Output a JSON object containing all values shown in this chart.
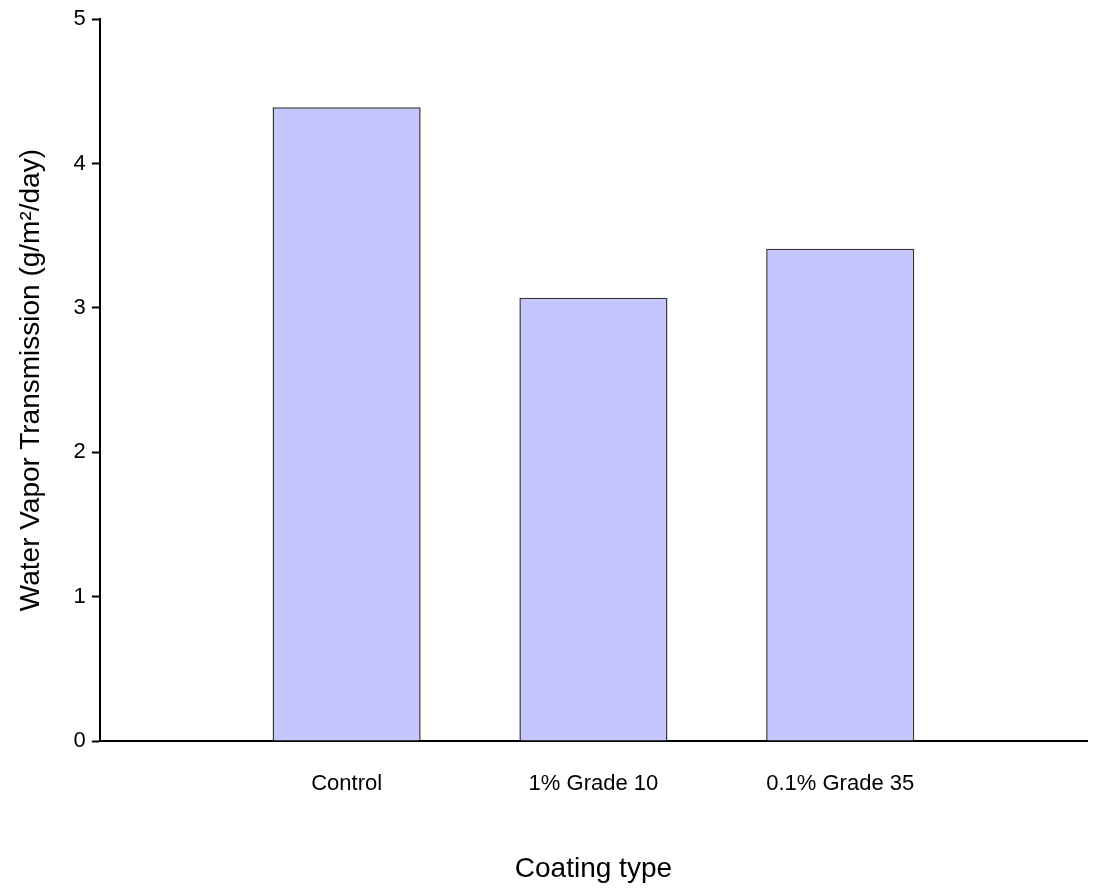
{
  "chart_data": {
    "type": "bar",
    "xlabel": "Coating type",
    "ylabel": "Water Vapor Transmission (g/m²/day)",
    "categories": [
      null,
      "Control",
      "1% Grade 10",
      "0.1% Grade 35",
      null
    ],
    "values": [
      null,
      4.39,
      3.07,
      3.41,
      null
    ],
    "color": "#c6c6ff",
    "ylim": [
      0,
      5
    ],
    "yticks": [
      0,
      1,
      2,
      3,
      4,
      5
    ],
    "grid": false,
    "legend": false
  }
}
